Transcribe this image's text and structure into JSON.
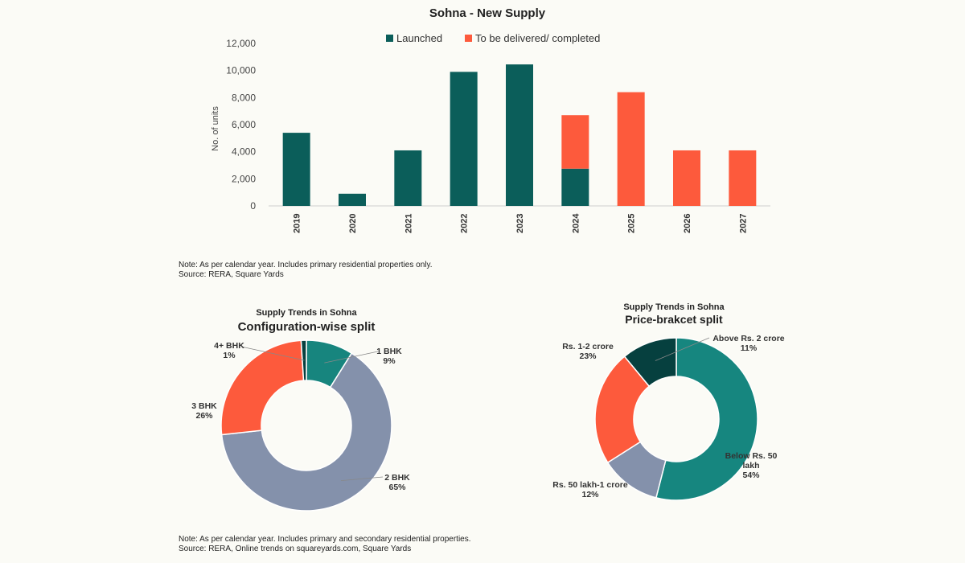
{
  "chart_data": [
    {
      "type": "bar",
      "stacked": true,
      "title": "Sohna - New Supply",
      "xlabel": "",
      "ylabel": "No. of units",
      "categories": [
        "2019",
        "2020",
        "2021",
        "2022",
        "2023",
        "2024",
        "2025",
        "2026",
        "2027"
      ],
      "series": [
        {
          "name": "Launched",
          "color": "#0b5e5a",
          "values": [
            5400,
            900,
            4100,
            9900,
            10450,
            2750,
            0,
            0,
            0
          ]
        },
        {
          "name": "To be delivered/ completed",
          "color": "#fd5a3c",
          "values": [
            0,
            0,
            0,
            0,
            0,
            3950,
            8400,
            4100,
            4100
          ]
        }
      ],
      "ylim": [
        0,
        12000
      ],
      "yticks": [
        "0",
        "2,000",
        "4,000",
        "6,000",
        "8,000",
        "10,000",
        "12,000"
      ],
      "ytick_values": [
        0,
        2000,
        4000,
        6000,
        8000,
        10000,
        12000
      ],
      "grid": false,
      "legend": "top"
    },
    {
      "type": "pie",
      "donut": true,
      "supertitle": "Supply Trends in Sohna",
      "title": "Configuration-wise split",
      "slices": [
        {
          "label": "1 BHK",
          "pct_label": "9%",
          "value": 9,
          "color": "#17857e"
        },
        {
          "label": "2 BHK",
          "pct_label": "65%",
          "value": 65,
          "color": "#8491ab"
        },
        {
          "label": "3 BHK",
          "pct_label": "26%",
          "value": 26,
          "color": "#fd5a3c"
        },
        {
          "label": "4+ BHK",
          "pct_label": "1%",
          "value": 1,
          "color": "#06403f"
        }
      ]
    },
    {
      "type": "pie",
      "donut": true,
      "supertitle": "Supply Trends in Sohna",
      "title": "Price-brakcet split",
      "slices": [
        {
          "label": "Below Rs. 50 lakh",
          "label_lines": [
            "Below Rs. 50",
            "lakh"
          ],
          "pct_label": "54%",
          "value": 54,
          "color": "#16867f"
        },
        {
          "label": "Rs. 50 lakh-1 crore",
          "label_lines": [
            "Rs. 50 lakh-1 crore"
          ],
          "pct_label": "12%",
          "value": 12,
          "color": "#8491ab"
        },
        {
          "label": "Rs. 1-2 crore",
          "label_lines": [
            "Rs. 1-2 crore"
          ],
          "pct_label": "23%",
          "value": 23,
          "color": "#fd5a3c"
        },
        {
          "label": "Above Rs. 2 crore",
          "label_lines": [
            "Above Rs. 2 crore"
          ],
          "pct_label": "11%",
          "value": 11,
          "color": "#06403f"
        }
      ]
    }
  ],
  "notes": {
    "top_line1": "Note: As per calendar year. Includes primary residential properties only.",
    "top_line2": "Source: RERA, Square Yards",
    "bottom_line1": "Note: As per calendar year. Includes primary and secondary residential properties.",
    "bottom_line2": "Source: RERA, Online trends on squareyards.com, Square Yards"
  }
}
